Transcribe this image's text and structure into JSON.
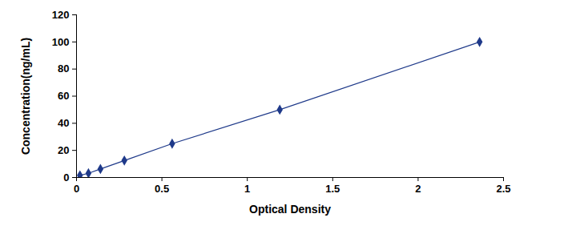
{
  "chart_data": {
    "type": "line",
    "marker": "diamond",
    "color": "#1f3a8a",
    "x_label": "Optical Density",
    "y_label": "Concentration(ng/mL)",
    "x": [
      0.02,
      0.07,
      0.14,
      0.28,
      0.56,
      1.19,
      2.36
    ],
    "values": [
      1.56,
      3.12,
      6.25,
      12.5,
      25,
      50,
      100
    ],
    "xlim": [
      0,
      2.5
    ],
    "xticks": [
      0,
      0.5,
      1,
      1.5,
      2,
      2.5
    ],
    "ylim": [
      0,
      120
    ],
    "yticks": [
      0,
      20,
      40,
      60,
      80,
      100,
      120
    ],
    "grid": false
  }
}
